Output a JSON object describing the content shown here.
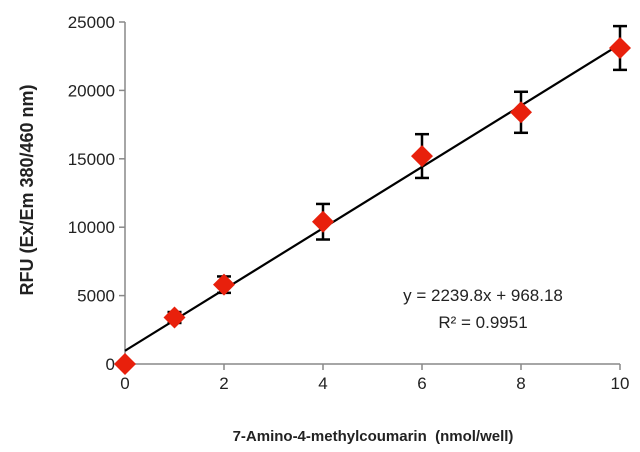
{
  "chart_data": {
    "type": "scatter",
    "xlabel": "7-Amino-4-methylcoumarin  (nmol/well)",
    "ylabel": "RFU (Ex/Em 380/460 nm)",
    "xlim": [
      0,
      10
    ],
    "ylim": [
      0,
      25000
    ],
    "x_ticks": [
      "0",
      "2",
      "4",
      "6",
      "8",
      "10"
    ],
    "y_ticks": [
      "0",
      "5000",
      "10000",
      "15000",
      "20000",
      "25000"
    ],
    "grid": false,
    "legend": "none",
    "marker_color": "#e8200c",
    "line_color": "#000000",
    "series": [
      {
        "x": [
          0,
          1,
          2,
          4,
          6,
          8,
          10
        ],
        "y": [
          0,
          3400,
          5800,
          10400,
          15200,
          18400,
          23100
        ],
        "error": [
          0,
          400,
          600,
          1300,
          1600,
          1500,
          1600
        ]
      }
    ],
    "trendline": {
      "slope": 2239.8,
      "intercept": 968.18,
      "equation": "y = 2239.8x + 968.18",
      "r_squared": "R² = 0.9951"
    }
  }
}
